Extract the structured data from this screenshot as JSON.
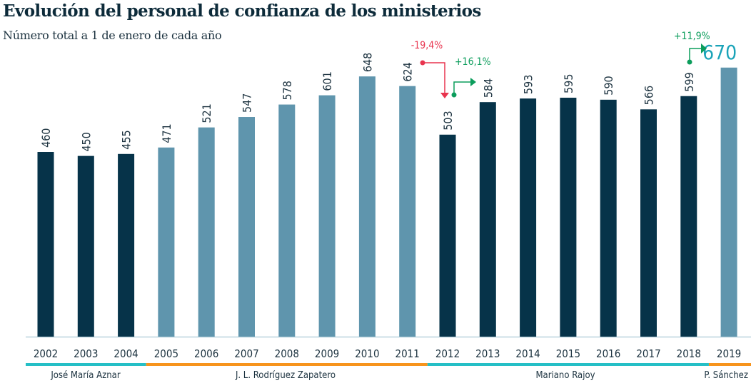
{
  "chart_data": {
    "type": "bar",
    "title": "Evolución del personal de confianza de los ministerios",
    "subtitle": "Número total a 1 de enero de cada año",
    "categories": [
      "2002",
      "2003",
      "2004",
      "2005",
      "2006",
      "2007",
      "2008",
      "2009",
      "2010",
      "2011",
      "2012",
      "2013",
      "2014",
      "2015",
      "2016",
      "2017",
      "2018",
      "2019"
    ],
    "values": [
      460,
      450,
      455,
      471,
      521,
      547,
      578,
      601,
      648,
      624,
      503,
      584,
      593,
      595,
      590,
      566,
      599,
      670
    ],
    "periods": [
      {
        "name": "José María Aznar",
        "from": "2002",
        "to": "2004",
        "color": "#25bfc6",
        "bar_color": "#063349"
      },
      {
        "name": "J. L. Rodríguez Zapatero",
        "from": "2005",
        "to": "2011",
        "color": "#f7941d",
        "bar_color": "#5f95ad"
      },
      {
        "name": "Mariano Rajoy",
        "from": "2012",
        "to": "2018",
        "color": "#25bfc6",
        "bar_color": "#063349"
      },
      {
        "name": "P. Sánchez",
        "from": "2019",
        "to": "2019",
        "color": "#f7941d",
        "bar_color": "#5f95ad"
      }
    ],
    "annotations": [
      {
        "text": "-19,4%",
        "from": "2011",
        "to": "2012",
        "color": "#e8344e"
      },
      {
        "text": "+16,1%",
        "from": "2012",
        "to": "2013",
        "color": "#0c9d5c"
      },
      {
        "text": "+11,9%",
        "from": "2018",
        "to": "2019",
        "color": "#0c9d5c"
      }
    ],
    "highlight_color": "#1aa3b8",
    "ylim": [
      0,
      700
    ]
  }
}
